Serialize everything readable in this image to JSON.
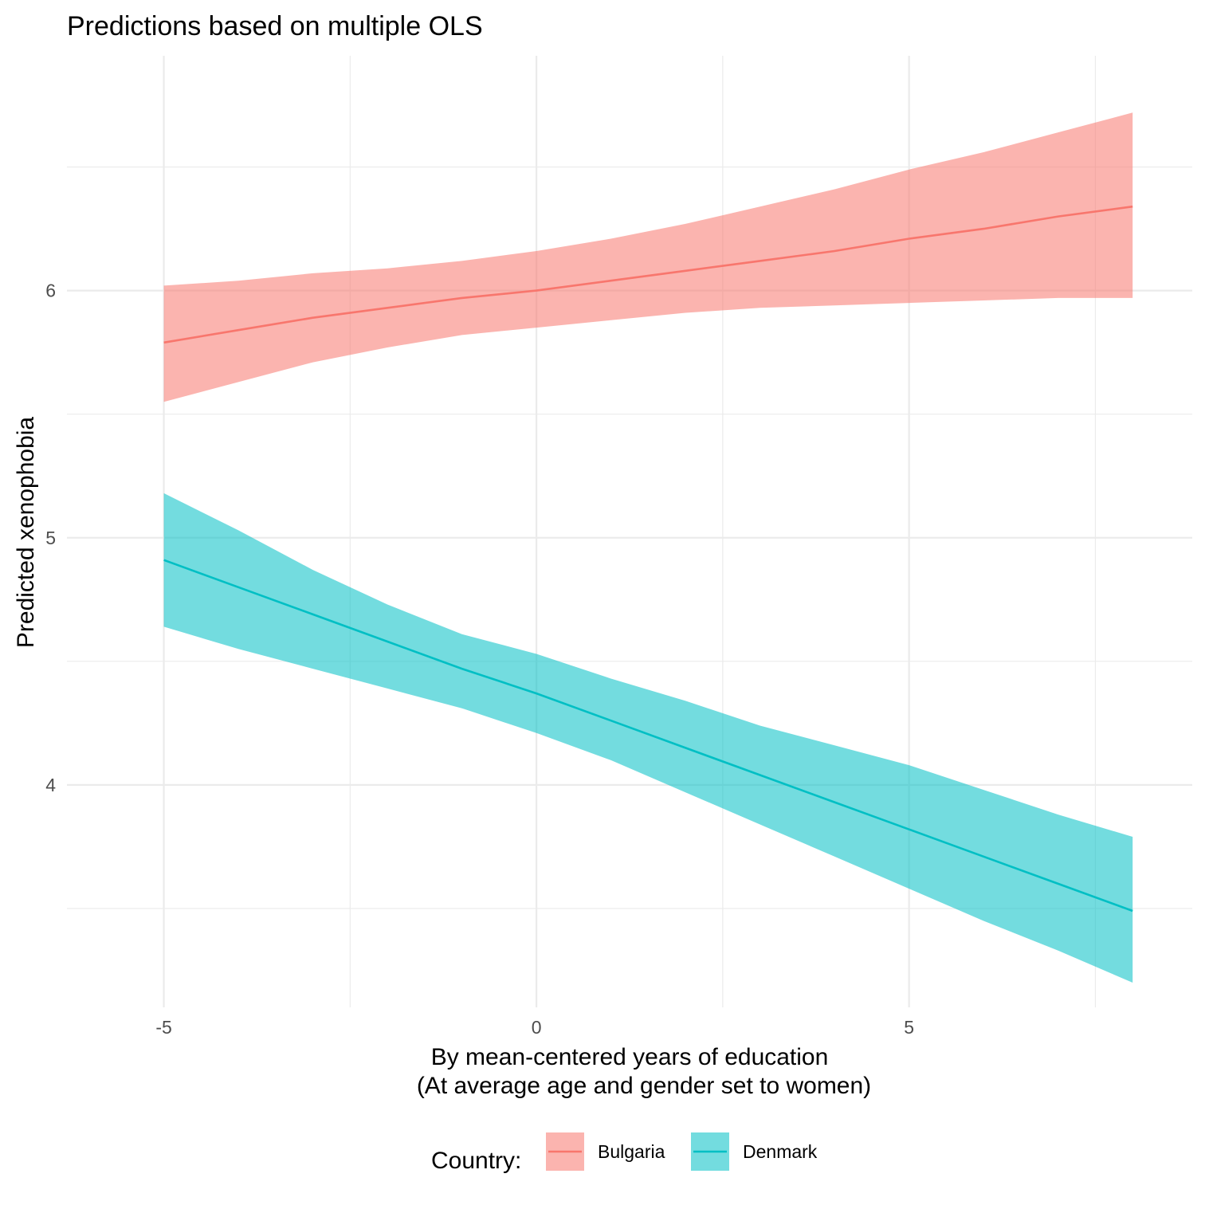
{
  "chart_data": {
    "type": "line",
    "title": "Predictions based on multiple OLS",
    "xlabel_lines": [
      "By mean-centered years of education",
      "(At average age and gender set to women)"
    ],
    "ylabel": "Predicted xenophobia",
    "xlim": [
      -6.3,
      8.8
    ],
    "ylim": [
      3.1,
      6.95
    ],
    "x_ticks": [
      -5,
      0,
      5
    ],
    "x_tick_labels": [
      "-5",
      "0",
      "5"
    ],
    "y_ticks": [
      4,
      5,
      6
    ],
    "y_tick_labels": [
      "4",
      "5",
      "6"
    ],
    "x_minor": [
      -7.5,
      -2.5,
      2.5,
      7.5
    ],
    "y_minor": [
      3.5,
      4.5,
      5.5,
      6.5
    ],
    "grid": true,
    "legend": {
      "title": "Country:",
      "position": "bottom"
    },
    "x": [
      -5,
      -4,
      -3,
      -2,
      -1,
      0,
      1,
      2,
      3,
      4,
      5,
      6,
      7,
      8
    ],
    "series": [
      {
        "name": "Bulgaria",
        "color": "#F8766D",
        "fit": [
          5.79,
          5.84,
          5.89,
          5.93,
          5.97,
          6.0,
          6.04,
          6.08,
          6.12,
          6.16,
          6.21,
          6.25,
          6.3,
          6.34
        ],
        "lower": [
          5.55,
          5.63,
          5.71,
          5.77,
          5.82,
          5.85,
          5.88,
          5.91,
          5.93,
          5.94,
          5.95,
          5.96,
          5.97,
          5.97
        ],
        "upper": [
          6.02,
          6.04,
          6.07,
          6.09,
          6.12,
          6.16,
          6.21,
          6.27,
          6.34,
          6.41,
          6.49,
          6.56,
          6.64,
          6.72
        ]
      },
      {
        "name": "Denmark",
        "color": "#00BFC4",
        "fit": [
          4.91,
          4.8,
          4.69,
          4.58,
          4.47,
          4.37,
          4.26,
          4.15,
          4.04,
          3.93,
          3.82,
          3.71,
          3.6,
          3.49
        ],
        "lower": [
          4.64,
          4.55,
          4.47,
          4.39,
          4.31,
          4.21,
          4.1,
          3.97,
          3.84,
          3.71,
          3.58,
          3.45,
          3.33,
          3.2
        ],
        "upper": [
          5.18,
          5.03,
          4.87,
          4.73,
          4.61,
          4.53,
          4.43,
          4.34,
          4.24,
          4.16,
          4.08,
          3.98,
          3.88,
          3.79
        ]
      }
    ]
  }
}
